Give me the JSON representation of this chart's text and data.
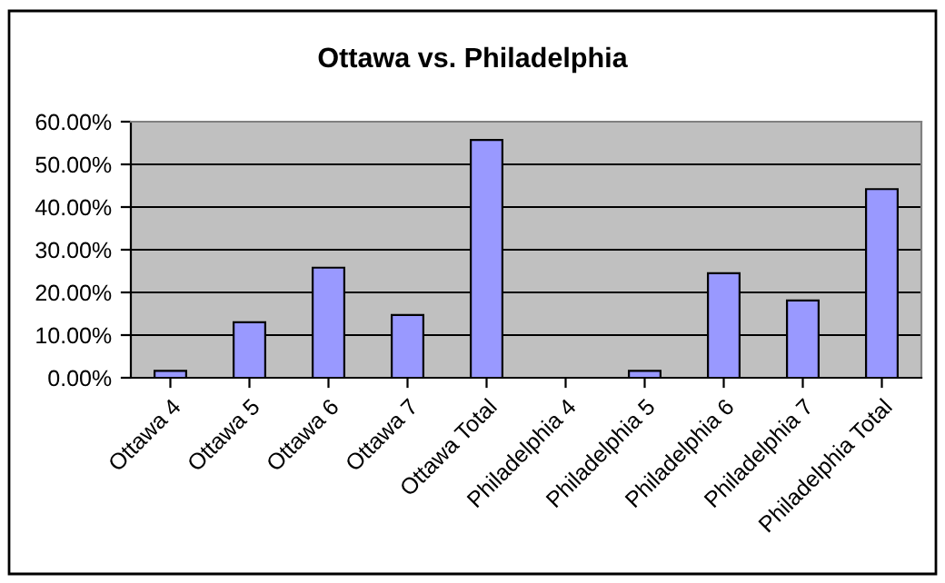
{
  "chart_data": {
    "type": "bar",
    "title": "Ottawa vs. Philadelphia",
    "categories": [
      "Ottawa 4",
      "Ottawa 5",
      "Ottawa 6",
      "Ottawa 7",
      "Ottawa Total",
      "Philadelphia 4",
      "Philadelphia 5",
      "Philadelphia 6",
      "Philadelphia 7",
      "Philadelphia Total"
    ],
    "values": [
      1.6,
      13.0,
      25.8,
      14.7,
      55.7,
      0,
      1.6,
      24.5,
      18.1,
      44.2
    ],
    "color": "#9999ff",
    "ylim": [
      0,
      60
    ],
    "yticks": [
      {
        "value": 0,
        "label": "0.00%"
      },
      {
        "value": 10,
        "label": "10.00%"
      },
      {
        "value": 20,
        "label": "20.00%"
      },
      {
        "value": 30,
        "label": "30.00%"
      },
      {
        "value": 40,
        "label": "40.00%"
      },
      {
        "value": 50,
        "label": "50.00%"
      },
      {
        "value": 60,
        "label": "60.00%"
      }
    ],
    "grid": "y"
  }
}
